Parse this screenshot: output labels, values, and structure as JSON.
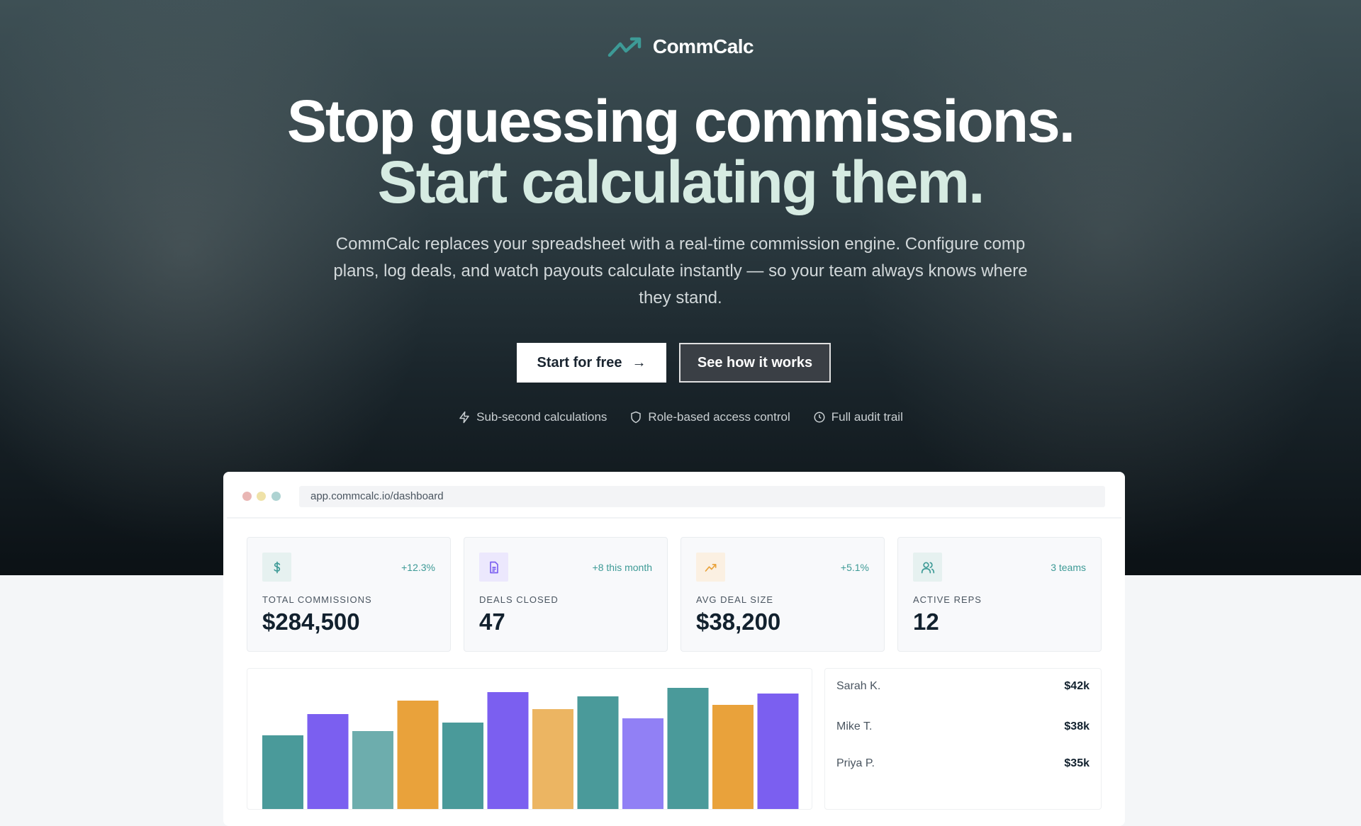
{
  "brand": {
    "name": "CommCalc",
    "accent": "#3d9a96"
  },
  "hero": {
    "headline_1": "Stop guessing commissions.",
    "headline_2": "Start calculating them.",
    "subtitle": "CommCalc replaces your spreadsheet with a real-time commission engine. Configure comp plans, log deals, and watch payouts calculate instantly — so your team always knows where they stand.",
    "primary_cta": "Start for free",
    "secondary_cta": "See how it works",
    "features": [
      {
        "icon": "lightning-icon",
        "label": "Sub-second calculations"
      },
      {
        "icon": "shield-icon",
        "label": "Role-based access control"
      },
      {
        "icon": "clock-icon",
        "label": "Full audit trail"
      }
    ]
  },
  "dashboard": {
    "url": "app.commcalc.io/dashboard",
    "stats": [
      {
        "icon": "dollar-icon",
        "label": "TOTAL COMMISSIONS",
        "value": "$284,500",
        "delta": "+12.3%",
        "color": "#3d9a96",
        "bg": "#e6f1f0"
      },
      {
        "icon": "document-icon",
        "label": "DEALS CLOSED",
        "value": "47",
        "delta": "+8 this month",
        "color": "#7b5ff0",
        "bg": "#ece8fd"
      },
      {
        "icon": "trending-up-icon",
        "label": "AVG DEAL SIZE",
        "value": "$38,200",
        "delta": "+5.1%",
        "color": "#e9a23b",
        "bg": "#fbf0e2"
      },
      {
        "icon": "users-icon",
        "label": "ACTIVE REPS",
        "value": "12",
        "delta": "3 teams",
        "color": "#3d9a96",
        "bg": "#e6f1f0"
      }
    ],
    "leaderboard": [
      {
        "name": "Sarah K.",
        "amount": "$42k"
      },
      {
        "name": "Mike T.",
        "amount": "$38k"
      },
      {
        "name": "Priya P.",
        "amount": "$35k"
      }
    ]
  },
  "chart_data": {
    "type": "bar",
    "values": [
      103,
      133,
      109,
      152,
      121,
      164,
      140,
      158,
      127,
      170,
      146,
      162
    ],
    "colors": [
      "#4a9a9a",
      "#7b5ff0",
      "#6dadad",
      "#e9a23b",
      "#4a9a9a",
      "#7b5ff0",
      "#ecb562",
      "#4a9a9a",
      "#9180f5",
      "#4a9a9a",
      "#e9a23b",
      "#7b5ff0"
    ]
  }
}
